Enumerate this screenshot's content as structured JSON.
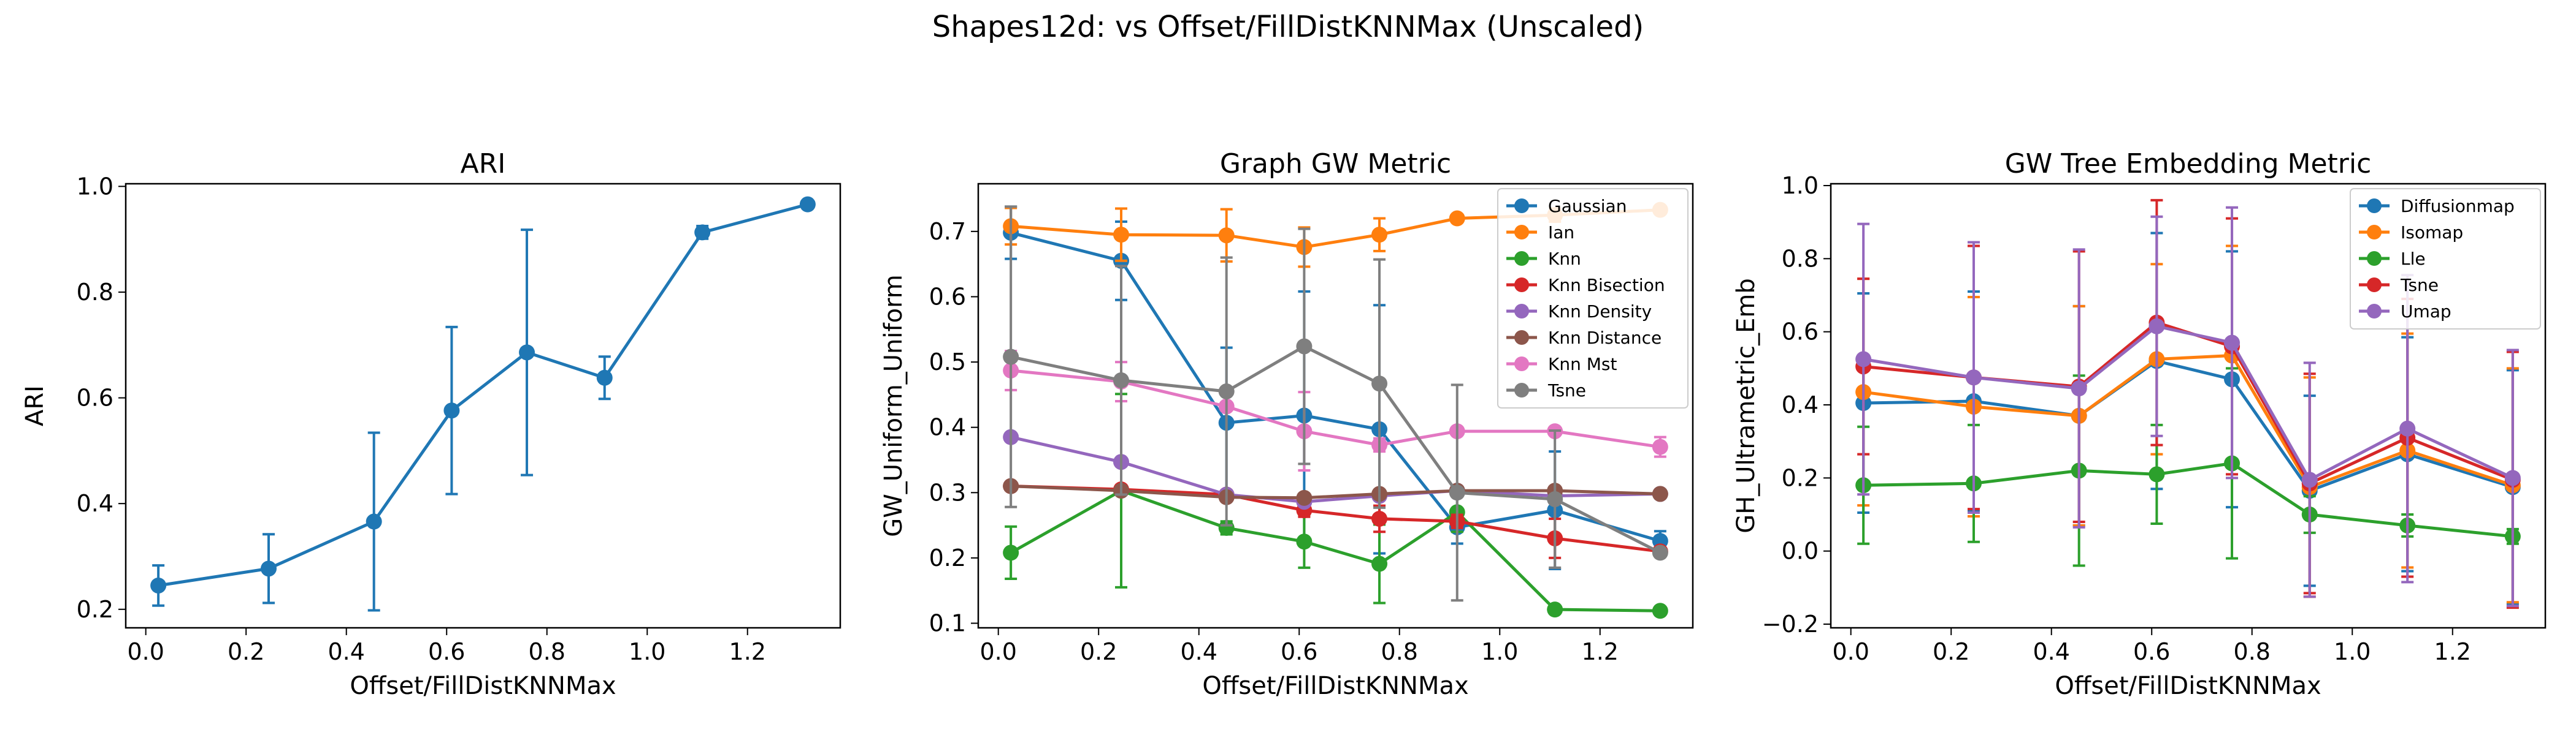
{
  "suptitle": "Shapes12d: vs Offset/FillDistKNNMax (Unscaled)",
  "chart_data": [
    {
      "type": "line",
      "title": "ARI",
      "xlabel": "Offset/FillDistKNNMax",
      "ylabel": "ARI",
      "xlim": [
        -0.04,
        1.385
      ],
      "ylim": [
        0.165,
        1.005
      ],
      "xticks": [
        0.0,
        0.2,
        0.4,
        0.6,
        0.8,
        1.0,
        1.2
      ],
      "xtick_labels": [
        "0.0",
        "0.2",
        "0.4",
        "0.6",
        "0.8",
        "1.0",
        "1.2"
      ],
      "yticks": [
        0.2,
        0.4,
        0.6,
        0.8,
        1.0
      ],
      "ytick_labels": [
        "0.2",
        "0.4",
        "0.6",
        "0.8",
        "1.0"
      ],
      "grid": false,
      "legend": null,
      "x": [
        0.025,
        0.245,
        0.455,
        0.61,
        0.76,
        0.915,
        1.11,
        1.32
      ],
      "series": [
        {
          "color": "#1f77b4",
          "values": [
            0.245,
            0.277,
            0.366,
            0.576,
            0.686,
            0.638,
            0.913,
            0.966
          ],
          "errors": [
            0.038,
            0.065,
            0.168,
            0.158,
            0.232,
            0.04,
            0.012,
            0.004
          ]
        }
      ]
    },
    {
      "type": "line",
      "title": "Graph GW Metric",
      "xlabel": "Offset/FillDistKNNMax",
      "ylabel": "GW_Uniform_Uniform",
      "xlim": [
        -0.04,
        1.385
      ],
      "ylim": [
        0.093,
        0.773
      ],
      "xticks": [
        0.0,
        0.2,
        0.4,
        0.6,
        0.8,
        1.0,
        1.2
      ],
      "xtick_labels": [
        "0.0",
        "0.2",
        "0.4",
        "0.6",
        "0.8",
        "1.0",
        "1.2"
      ],
      "yticks": [
        0.1,
        0.2,
        0.3,
        0.4,
        0.5,
        0.6,
        0.7
      ],
      "ytick_labels": [
        "0.1",
        "0.2",
        "0.3",
        "0.4",
        "0.5",
        "0.6",
        "0.7"
      ],
      "grid": false,
      "legend": "upper right",
      "x": [
        0.025,
        0.245,
        0.455,
        0.61,
        0.76,
        0.915,
        1.11,
        1.32
      ],
      "series": [
        {
          "name": "Gaussian",
          "color": "#1f77b4",
          "values": [
            0.698,
            0.655,
            0.407,
            0.418,
            0.397,
            0.247,
            0.273,
            0.226
          ],
          "errors": [
            0.04,
            0.06,
            0.115,
            0.19,
            0.19,
            0.025,
            0.09,
            0.015
          ]
        },
        {
          "name": "Ian",
          "color": "#ff7f0e",
          "values": [
            0.708,
            0.695,
            0.694,
            0.676,
            0.695,
            0.72,
            0.725,
            0.733
          ],
          "errors": [
            0.028,
            0.04,
            0.04,
            0.03,
            0.025,
            0.004,
            0.01,
            0.004
          ]
        },
        {
          "name": "Knn",
          "color": "#2ca02c",
          "values": [
            0.208,
            0.303,
            0.246,
            0.225,
            0.191,
            0.27,
            0.121,
            0.119
          ],
          "errors": [
            0.04,
            0.148,
            0.01,
            0.04,
            0.06,
            0.03,
            0.004,
            0.004
          ]
        },
        {
          "name": "Knn Bisection",
          "color": "#d62728",
          "values": [
            0.31,
            0.305,
            0.297,
            0.273,
            0.26,
            0.256,
            0.23,
            0.21
          ],
          "errors": [
            0.004,
            0.005,
            0.005,
            0.01,
            0.02,
            0.01,
            0.03,
            0.004
          ]
        },
        {
          "name": "Knn Density",
          "color": "#9467bd",
          "values": [
            0.385,
            0.347,
            0.297,
            0.286,
            0.295,
            0.303,
            0.295,
            0.298
          ],
          "errors": [
            0.005,
            0.005,
            0.005,
            0.005,
            0.005,
            0.005,
            0.005,
            0.005
          ]
        },
        {
          "name": "Knn Distance",
          "color": "#8c564b",
          "values": [
            0.31,
            0.303,
            0.293,
            0.292,
            0.298,
            0.303,
            0.303,
            0.298
          ],
          "errors": [
            0.005,
            0.005,
            0.005,
            0.005,
            0.005,
            0.005,
            0.005,
            0.005
          ]
        },
        {
          "name": "Knn Mst",
          "color": "#e377c2",
          "values": [
            0.487,
            0.47,
            0.432,
            0.394,
            0.373,
            0.394,
            0.394,
            0.37
          ],
          "errors": [
            0.03,
            0.03,
            0.005,
            0.06,
            0.01,
            0.005,
            0.005,
            0.015
          ]
        },
        {
          "name": "Tsne",
          "color": "#7f7f7f",
          "values": [
            0.508,
            0.472,
            0.455,
            0.524,
            0.467,
            0.3,
            0.29,
            0.208
          ],
          "errors": [
            0.23,
            0.175,
            0.205,
            0.18,
            0.19,
            0.165,
            0.105,
            0.005
          ]
        }
      ]
    },
    {
      "type": "line",
      "title": "GW Tree Embedding Metric",
      "xlabel": "Offset/FillDistKNNMax",
      "ylabel": "GH_Ultrametric_Emb",
      "xlim": [
        -0.04,
        1.385
      ],
      "ylim": [
        -0.21,
        1.005
      ],
      "xticks": [
        0.0,
        0.2,
        0.4,
        0.6,
        0.8,
        1.0,
        1.2
      ],
      "xtick_labels": [
        "0.0",
        "0.2",
        "0.4",
        "0.6",
        "0.8",
        "1.0",
        "1.2"
      ],
      "yticks": [
        -0.2,
        0.0,
        0.2,
        0.4,
        0.6,
        0.8,
        1.0
      ],
      "ytick_labels": [
        "−0.2",
        "0.0",
        "0.2",
        "0.4",
        "0.6",
        "0.8",
        "1.0"
      ],
      "grid": false,
      "legend": "upper right",
      "x": [
        0.025,
        0.245,
        0.455,
        0.61,
        0.76,
        0.915,
        1.11,
        1.32
      ],
      "series": [
        {
          "name": "Diffusionmap",
          "color": "#1f77b4",
          "values": [
            0.405,
            0.41,
            0.37,
            0.52,
            0.47,
            0.165,
            0.265,
            0.175
          ],
          "errors": [
            0.3,
            0.3,
            0.3,
            0.35,
            0.35,
            0.26,
            0.32,
            0.32
          ]
        },
        {
          "name": "Isomap",
          "color": "#ff7f0e",
          "values": [
            0.435,
            0.395,
            0.37,
            0.525,
            0.535,
            0.175,
            0.275,
            0.18
          ],
          "errors": [
            0.31,
            0.3,
            0.3,
            0.26,
            0.3,
            0.3,
            0.32,
            0.32
          ]
        },
        {
          "name": "Lle",
          "color": "#2ca02c",
          "values": [
            0.18,
            0.185,
            0.22,
            0.21,
            0.24,
            0.1,
            0.07,
            0.04
          ],
          "errors": [
            0.16,
            0.16,
            0.26,
            0.135,
            0.26,
            0.05,
            0.03,
            0.02
          ]
        },
        {
          "name": "Tsne",
          "color": "#d62728",
          "values": [
            0.505,
            0.475,
            0.45,
            0.625,
            0.56,
            0.185,
            0.31,
            0.195
          ],
          "errors": [
            0.24,
            0.36,
            0.37,
            0.335,
            0.35,
            0.3,
            0.38,
            0.35
          ]
        },
        {
          "name": "Umap",
          "color": "#9467bd",
          "values": [
            0.525,
            0.475,
            0.445,
            0.615,
            0.57,
            0.195,
            0.335,
            0.2
          ],
          "errors": [
            0.37,
            0.37,
            0.38,
            0.3,
            0.37,
            0.32,
            0.42,
            0.35
          ]
        }
      ]
    }
  ]
}
